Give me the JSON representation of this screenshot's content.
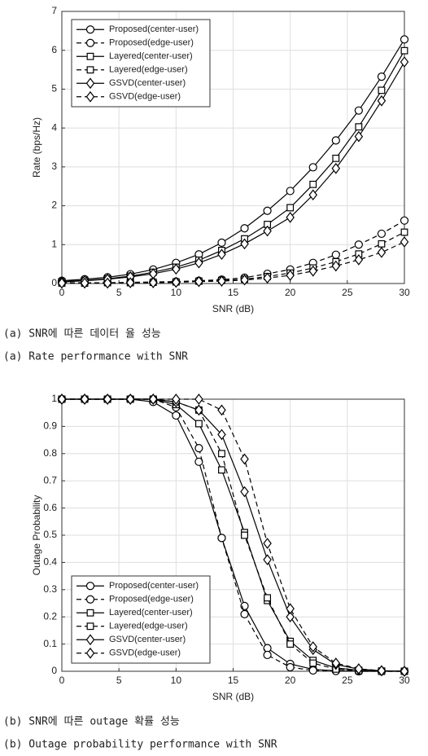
{
  "chart_data": [
    {
      "type": "line",
      "xlabel": "SNR (dB)",
      "ylabel": "Rate (bps/Hz)",
      "x": [
        0,
        2,
        4,
        6,
        8,
        10,
        12,
        14,
        16,
        18,
        20,
        22,
        24,
        26,
        28,
        30
      ],
      "xlim": [
        0,
        30
      ],
      "xticks": [
        0,
        5,
        10,
        15,
        20,
        25,
        30
      ],
      "ylim": [
        0,
        7
      ],
      "yticks": [
        0,
        1,
        2,
        3,
        4,
        5,
        6,
        7
      ],
      "grid": true,
      "legend": "upper left",
      "series": [
        {
          "name": "Proposed(center-user)",
          "color": "#000000",
          "marker": "circle",
          "dash": false,
          "values": [
            0.07,
            0.11,
            0.16,
            0.24,
            0.36,
            0.53,
            0.75,
            1.05,
            1.42,
            1.87,
            2.38,
            2.99,
            3.68,
            4.45,
            5.32,
            6.28
          ]
        },
        {
          "name": "Proposed(edge-user)",
          "color": "#000000",
          "marker": "circle",
          "dash": true,
          "values": [
            0.02,
            0.02,
            0.02,
            0.03,
            0.04,
            0.05,
            0.07,
            0.1,
            0.15,
            0.25,
            0.36,
            0.53,
            0.74,
            1.0,
            1.28,
            1.62
          ]
        },
        {
          "name": "Layered(center-user)",
          "color": "#000000",
          "marker": "square",
          "dash": false,
          "values": [
            0.05,
            0.08,
            0.12,
            0.19,
            0.29,
            0.42,
            0.6,
            0.85,
            1.15,
            1.52,
            1.95,
            2.55,
            3.22,
            4.03,
            4.97,
            5.99
          ]
        },
        {
          "name": "Layered(edge-user)",
          "color": "#000000",
          "marker": "square",
          "dash": true,
          "values": [
            0.01,
            0.01,
            0.02,
            0.02,
            0.03,
            0.04,
            0.06,
            0.08,
            0.11,
            0.18,
            0.27,
            0.4,
            0.56,
            0.76,
            1.02,
            1.32
          ]
        },
        {
          "name": "GSVD(center-user)",
          "color": "#000000",
          "marker": "diamond",
          "dash": false,
          "values": [
            0.04,
            0.07,
            0.11,
            0.17,
            0.25,
            0.37,
            0.53,
            0.75,
            1.02,
            1.35,
            1.7,
            2.28,
            2.96,
            3.78,
            4.7,
            5.7
          ]
        },
        {
          "name": "GSVD(edge-user)",
          "color": "#000000",
          "marker": "diamond",
          "dash": true,
          "values": [
            0.01,
            0.01,
            0.01,
            0.02,
            0.02,
            0.03,
            0.05,
            0.06,
            0.09,
            0.14,
            0.21,
            0.32,
            0.45,
            0.61,
            0.8,
            1.07
          ]
        }
      ],
      "captions": [
        "(a) SNR에 따른 데이터 율 성능",
        "(a) Rate performance with SNR"
      ]
    },
    {
      "type": "line",
      "xlabel": "SNR (dB)",
      "ylabel": "Outage Probability",
      "x": [
        0,
        2,
        4,
        6,
        8,
        10,
        12,
        14,
        16,
        18,
        20,
        22,
        24,
        26,
        28,
        30
      ],
      "xlim": [
        0,
        30
      ],
      "xticks": [
        0,
        5,
        10,
        15,
        20,
        25,
        30
      ],
      "ylim": [
        0,
        1
      ],
      "yticks": [
        0,
        0.1,
        0.2,
        0.3,
        0.4,
        0.5,
        0.6,
        0.7,
        0.8,
        0.9,
        1
      ],
      "grid": true,
      "legend": "lower left",
      "series": [
        {
          "name": "Proposed(center-user)",
          "color": "#000000",
          "marker": "circle",
          "dash": false,
          "values": [
            1,
            1,
            1,
            1,
            0.99,
            0.94,
            0.77,
            0.49,
            0.24,
            0.085,
            0.027,
            0.007,
            0.002,
            0,
            0,
            0
          ]
        },
        {
          "name": "Proposed(edge-user)",
          "color": "#000000",
          "marker": "circle",
          "dash": true,
          "values": [
            1,
            1,
            1,
            1,
            1,
            0.97,
            0.82,
            0.49,
            0.21,
            0.06,
            0.015,
            0.003,
            0.001,
            0,
            0,
            0
          ]
        },
        {
          "name": "Layered(center-user)",
          "color": "#000000",
          "marker": "square",
          "dash": false,
          "values": [
            1,
            1,
            1,
            1,
            1,
            0.98,
            0.91,
            0.74,
            0.51,
            0.26,
            0.11,
            0.04,
            0.012,
            0.004,
            0.001,
            0
          ]
        },
        {
          "name": "Layered(edge-user)",
          "color": "#000000",
          "marker": "square",
          "dash": true,
          "values": [
            1,
            1,
            1,
            1,
            1,
            0.99,
            0.96,
            0.8,
            0.5,
            0.27,
            0.1,
            0.03,
            0.008,
            0.002,
            0,
            0
          ]
        },
        {
          "name": "GSVD(center-user)",
          "color": "#000000",
          "marker": "diamond",
          "dash": false,
          "values": [
            1,
            1,
            1,
            1,
            1,
            0.99,
            0.96,
            0.87,
            0.66,
            0.41,
            0.2,
            0.08,
            0.025,
            0.008,
            0.002,
            0
          ]
        },
        {
          "name": "GSVD(edge-user)",
          "color": "#000000",
          "marker": "diamond",
          "dash": true,
          "values": [
            1,
            1,
            1,
            1,
            1,
            1,
            1,
            0.96,
            0.78,
            0.47,
            0.23,
            0.09,
            0.03,
            0.009,
            0.002,
            0
          ]
        }
      ],
      "captions": [
        "(b) SNR에 따른 outage 확률 성능",
        "(b) Outage probability performance with SNR"
      ]
    }
  ]
}
